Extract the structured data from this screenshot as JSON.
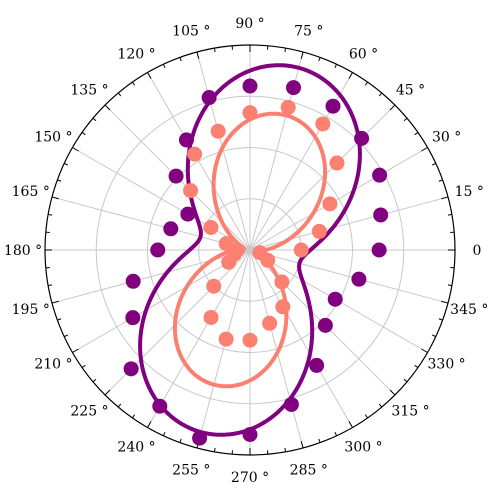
{
  "chart_data": {
    "type": "polar-scatter-line",
    "title": "",
    "angular_axis": {
      "unit": "degrees",
      "direction": "counterclockwise",
      "zero_at": "right",
      "tick_labels": [
        "0",
        "15 °",
        "30 °",
        "45 °",
        "60 °",
        "75 °",
        "90 °",
        "105 °",
        "120 °",
        "135 °",
        "150 °",
        "165 °",
        "180 °",
        "195 °",
        "210 °",
        "225 °",
        "240 °",
        "255 °",
        "270 °",
        "285 °",
        "300 °",
        "315 °",
        "330 °",
        "345 °"
      ],
      "tick_values": [
        0,
        15,
        30,
        45,
        60,
        75,
        90,
        105,
        120,
        135,
        150,
        165,
        180,
        195,
        210,
        225,
        240,
        255,
        270,
        285,
        300,
        315,
        330,
        345
      ]
    },
    "radial_axis": {
      "range": [
        0,
        1
      ],
      "grid_rings": [
        0.25,
        0.5,
        0.75,
        1.0
      ],
      "tick_labels_visible": false
    },
    "grid": true,
    "legend": "none",
    "series": [
      {
        "color": "#800080",
        "line_model": {
          "type": "rose",
          "a": 0.92,
          "b": 0.25,
          "phase_deg": 75
        },
        "points": {
          "theta": [
            0,
            15,
            30,
            45,
            60,
            75,
            90,
            105,
            120,
            135,
            150,
            165,
            180,
            195,
            210,
            225,
            240,
            255,
            270,
            285,
            300,
            315,
            330,
            345
          ],
          "r": [
            0.63,
            0.66,
            0.73,
            0.77,
            0.81,
            0.82,
            0.8,
            0.77,
            0.62,
            0.51,
            0.35,
            0.4,
            0.45,
            0.59,
            0.66,
            0.82,
            0.88,
            0.95,
            0.9,
            0.78,
            0.65,
            0.52,
            0.48,
            0.55
          ]
        }
      },
      {
        "color": "#fa8072",
        "line_model": {
          "type": "rose",
          "a": 0.68,
          "b": 0.03,
          "phase_deg": 75
        },
        "points": {
          "theta": [
            0,
            15,
            30,
            45,
            60,
            75,
            90,
            105,
            120,
            135,
            150,
            165,
            180,
            195,
            210,
            225,
            240,
            255,
            270,
            285,
            300,
            315,
            330,
            345
          ],
          "r": [
            0.25,
            0.35,
            0.45,
            0.6,
            0.71,
            0.72,
            0.67,
            0.6,
            0.54,
            0.41,
            0.22,
            0.12,
            0.06,
            0.08,
            0.12,
            0.25,
            0.38,
            0.45,
            0.44,
            0.37,
            0.32,
            0.22,
            0.1,
            0.05
          ]
        }
      }
    ]
  }
}
